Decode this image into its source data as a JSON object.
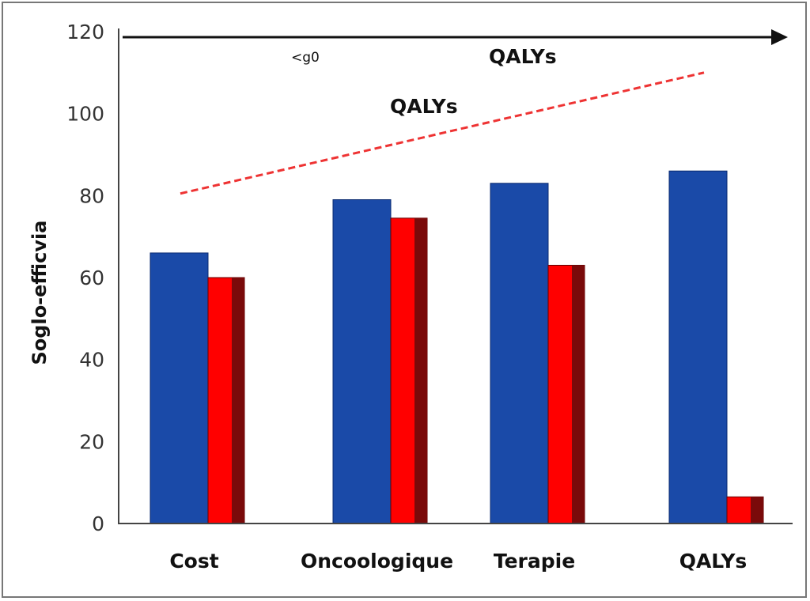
{
  "chart_data": {
    "type": "bar",
    "title": "",
    "xlabel": "",
    "ylabel": "Soglo-efficvia",
    "ylim": [
      0,
      120
    ],
    "yticks": [
      0,
      20,
      40,
      60,
      80,
      100,
      120
    ],
    "grid": false,
    "categories": [
      "Cost",
      "Oncoologique",
      "Terapie",
      "QALYs"
    ],
    "series": [
      {
        "color": "#1a4aa8",
        "values": [
          66,
          79,
          83,
          86
        ]
      },
      {
        "color": "#ff0000",
        "values": [
          60,
          74.5,
          63,
          6.5
        ]
      }
    ],
    "trend_line": {
      "style": "dashed",
      "color": "#ee3333",
      "from": 80.5,
      "to": 110
    },
    "annotations": {
      "arrow_left_label": "<g0",
      "arrow_label": "QALYs",
      "line_label": "QALYs"
    }
  }
}
